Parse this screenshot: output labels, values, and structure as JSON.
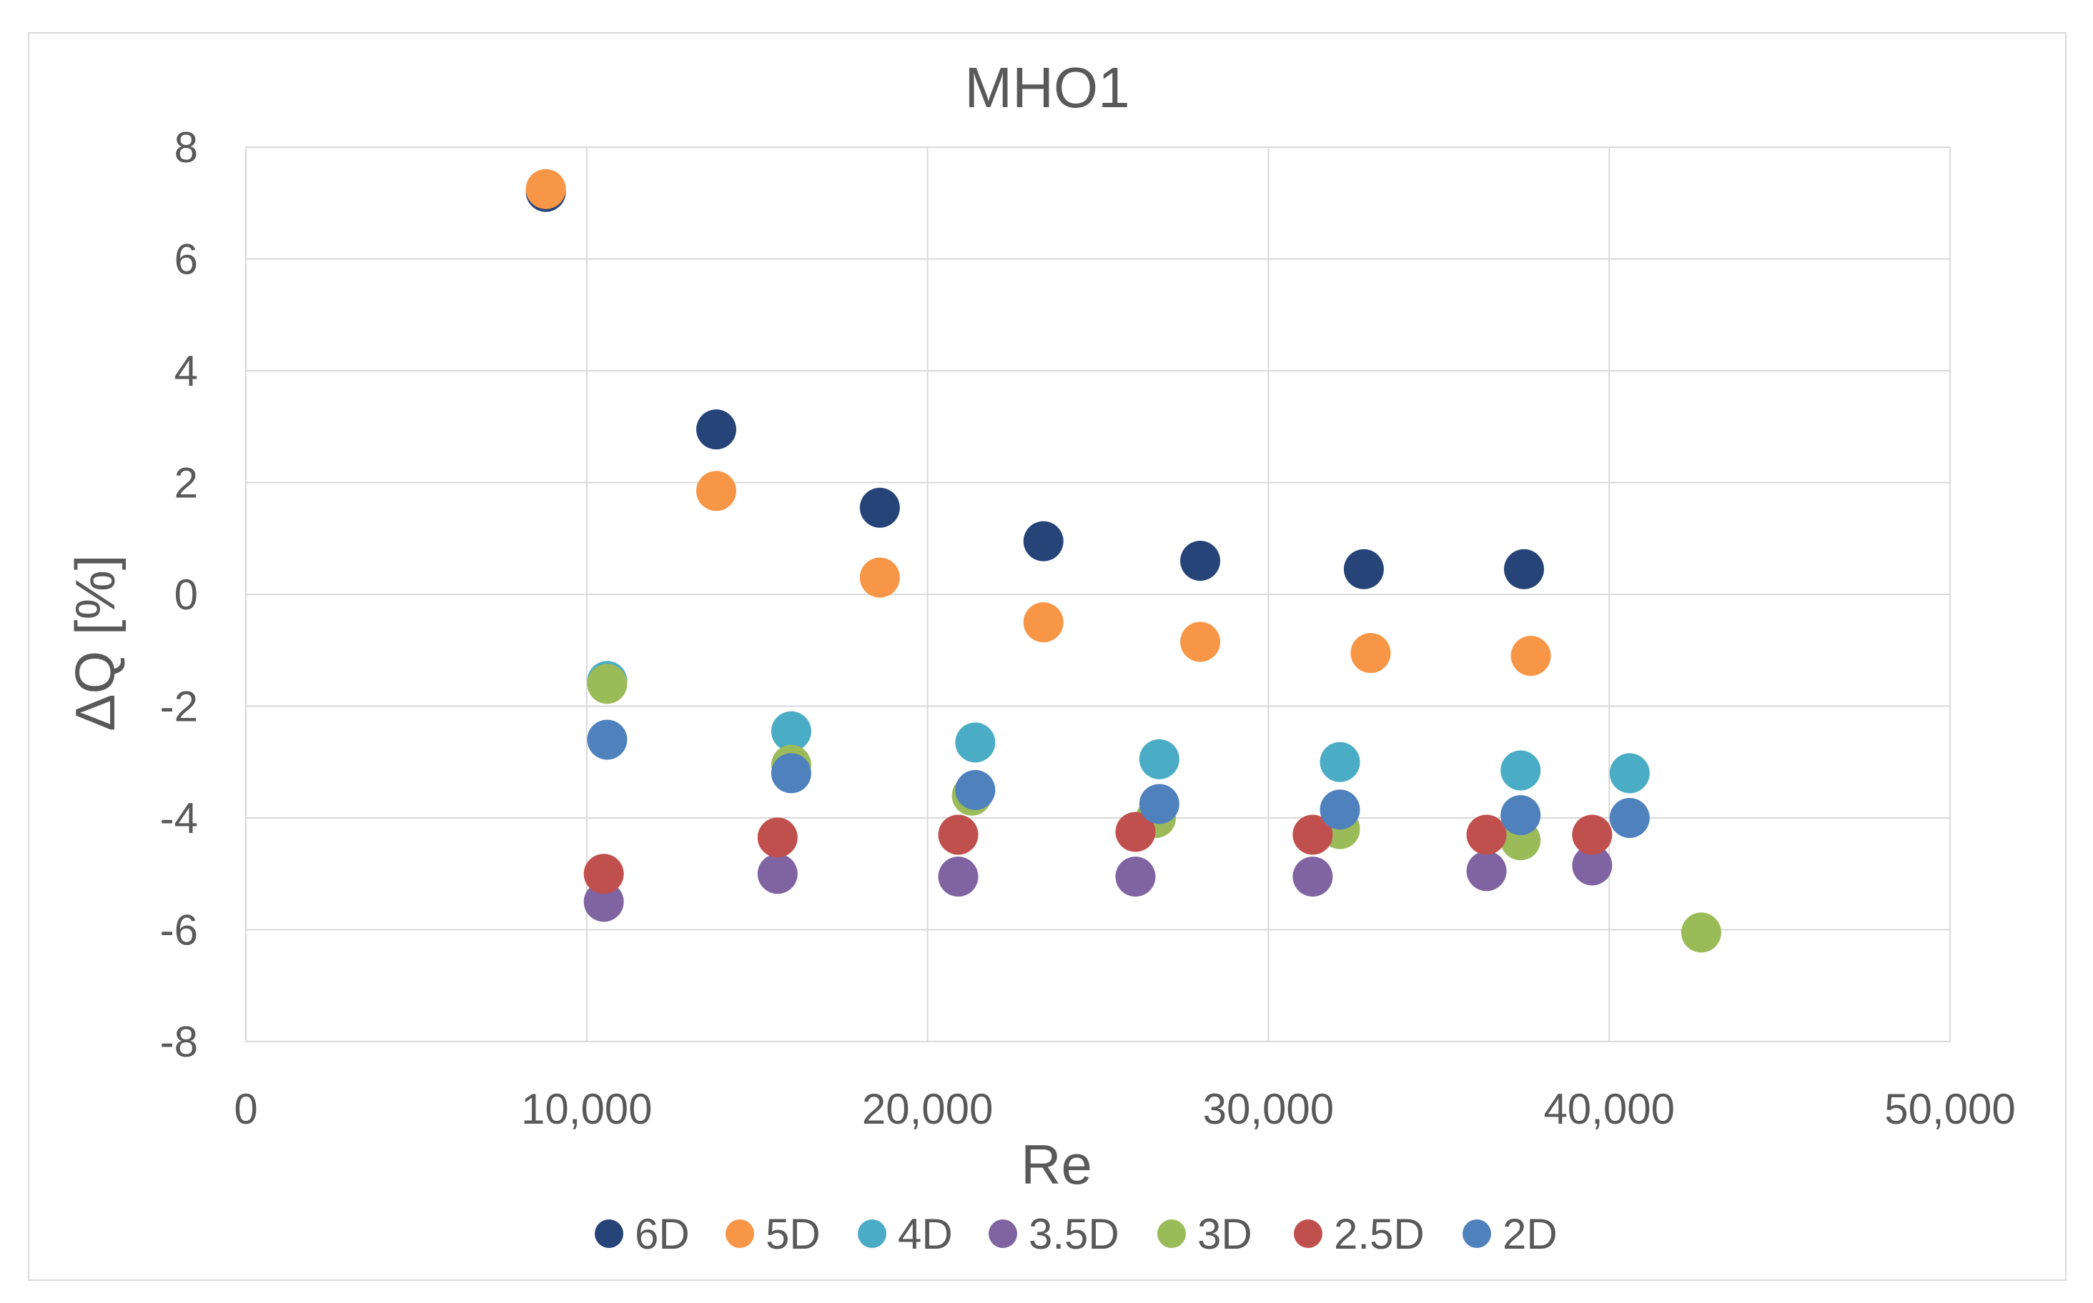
{
  "chart_data": {
    "type": "scatter",
    "title": "MHO1",
    "xlabel": "Re",
    "ylabel": "ΔQ [%]",
    "xlim": [
      0,
      50000
    ],
    "ylim": [
      -8,
      8
    ],
    "x_ticks": [
      0,
      10000,
      20000,
      30000,
      40000,
      50000
    ],
    "x_tick_labels": [
      "0",
      "10,000",
      "20,000",
      "30,000",
      "40,000",
      "50,000"
    ],
    "y_ticks": [
      -8,
      -6,
      -4,
      -2,
      0,
      2,
      4,
      6,
      8
    ],
    "y_tick_labels": [
      "-8",
      "-6",
      "-4",
      "-2",
      "0",
      "2",
      "4",
      "6",
      "8"
    ],
    "grid": "horizontal-and-vertical",
    "legend_position": "bottom",
    "series": [
      {
        "name": "6D",
        "color": "#264478",
        "points": [
          [
            8800,
            7.2
          ],
          [
            13800,
            2.95
          ],
          [
            18600,
            1.55
          ],
          [
            23400,
            0.95
          ],
          [
            28000,
            0.6
          ],
          [
            32800,
            0.45
          ],
          [
            37500,
            0.45
          ]
        ]
      },
      {
        "name": "5D",
        "color": "#F79646",
        "points": [
          [
            8800,
            7.25
          ],
          [
            13800,
            1.85
          ],
          [
            18600,
            0.3
          ],
          [
            23400,
            -0.5
          ],
          [
            28000,
            -0.85
          ],
          [
            33000,
            -1.05
          ],
          [
            37700,
            -1.1
          ]
        ]
      },
      {
        "name": "4D",
        "color": "#4BACC6",
        "points": [
          [
            10600,
            -1.55
          ],
          [
            16000,
            -2.45
          ],
          [
            21400,
            -2.65
          ],
          [
            26800,
            -2.95
          ],
          [
            32100,
            -3.0
          ],
          [
            37400,
            -3.15
          ],
          [
            40600,
            -3.2
          ]
        ]
      },
      {
        "name": "3.5D",
        "color": "#8064A2",
        "points": [
          [
            10500,
            -5.5
          ],
          [
            15600,
            -5.0
          ],
          [
            20900,
            -5.05
          ],
          [
            26100,
            -5.05
          ],
          [
            31300,
            -5.05
          ],
          [
            36400,
            -4.95
          ],
          [
            39500,
            -4.85
          ]
        ]
      },
      {
        "name": "3D",
        "color": "#9BBB59",
        "points": [
          [
            10600,
            -1.6
          ],
          [
            16000,
            -3.05
          ],
          [
            21300,
            -3.6
          ],
          [
            26700,
            -4.0
          ],
          [
            32100,
            -4.2
          ],
          [
            37400,
            -4.4
          ],
          [
            42700,
            -6.05
          ]
        ]
      },
      {
        "name": "2.5D",
        "color": "#C0504D",
        "points": [
          [
            10500,
            -5.0
          ],
          [
            15600,
            -4.35
          ],
          [
            20900,
            -4.3
          ],
          [
            26100,
            -4.25
          ],
          [
            31300,
            -4.3
          ],
          [
            36400,
            -4.3
          ],
          [
            39500,
            -4.3
          ]
        ]
      },
      {
        "name": "2D",
        "color": "#4F81BD",
        "points": [
          [
            10600,
            -2.6
          ],
          [
            16000,
            -3.2
          ],
          [
            21400,
            -3.5
          ],
          [
            26800,
            -3.75
          ],
          [
            32100,
            -3.85
          ],
          [
            37400,
            -3.95
          ],
          [
            40600,
            -4.0
          ]
        ]
      }
    ]
  }
}
